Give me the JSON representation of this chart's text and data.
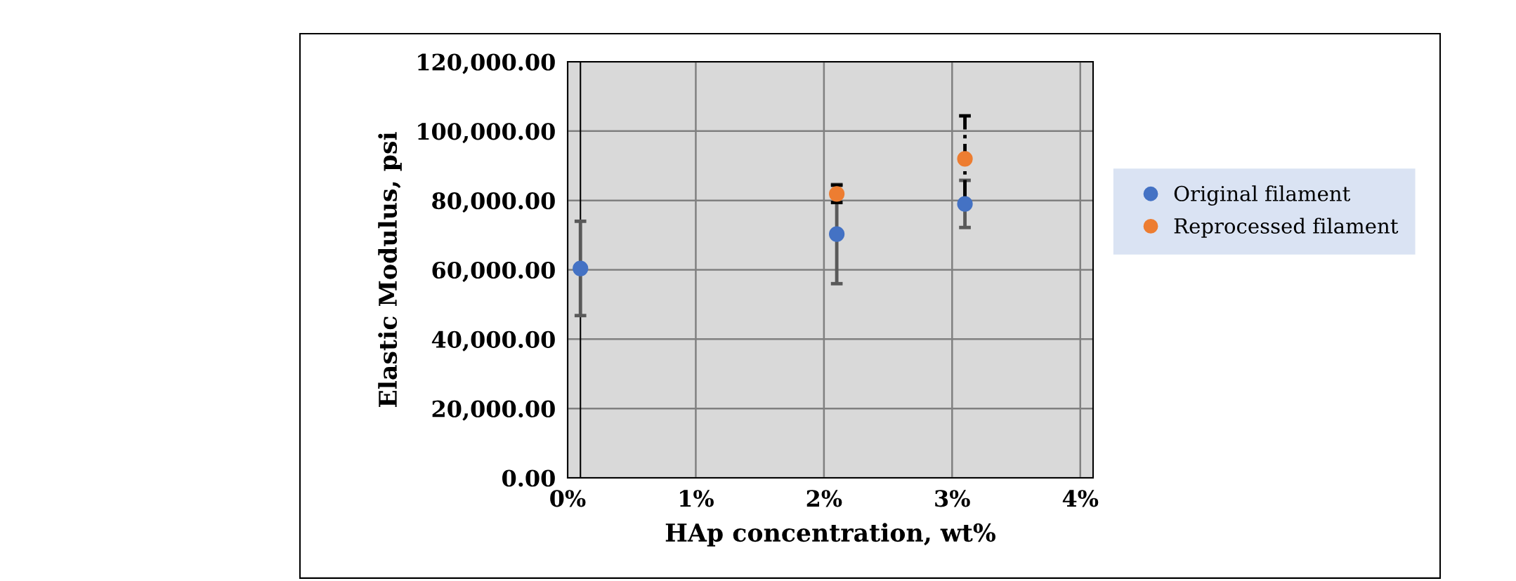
{
  "chart_data": {
    "type": "scatter",
    "xlabel": "HAp concentration, wt%",
    "ylabel": "Elastic Modulus, psi",
    "series": [
      {
        "name": "Original filament",
        "color": "#4472c4",
        "x": [
          0.001,
          0.021,
          0.031
        ],
        "values": [
          60400,
          70300,
          79000
        ],
        "errors": [
          13600,
          14300,
          6800
        ]
      },
      {
        "name": "Reprocessed filament",
        "color": "#ed7d31",
        "x": [
          0.021,
          0.031
        ],
        "values": [
          81900,
          92000
        ],
        "errors": [
          2500,
          12400
        ]
      }
    ],
    "xlim": [
      0,
      0.041
    ],
    "xticks": [
      {
        "value": 0,
        "label": "0%"
      },
      {
        "value": 0.01,
        "label": "1%"
      },
      {
        "value": 0.02,
        "label": "2%"
      },
      {
        "value": 0.03,
        "label": "3%"
      },
      {
        "value": 0.04,
        "label": "4%"
      }
    ],
    "ylim": [
      0,
      120000
    ],
    "yticks": [
      {
        "value": 0,
        "label": "0.00"
      },
      {
        "value": 20000,
        "label": "20,000.00"
      },
      {
        "value": 40000,
        "label": "40,000.00"
      },
      {
        "value": 60000,
        "label": "60,000.00"
      },
      {
        "value": 80000,
        "label": "80,000.00"
      },
      {
        "value": 100000,
        "label": "100,000.00"
      },
      {
        "value": 120000,
        "label": "120,000.00"
      }
    ],
    "ref_lines": [
      {
        "axis": "x",
        "value": 0.001,
        "color": "#000000"
      }
    ],
    "grid": true,
    "legend": "right",
    "marker": "circle"
  }
}
